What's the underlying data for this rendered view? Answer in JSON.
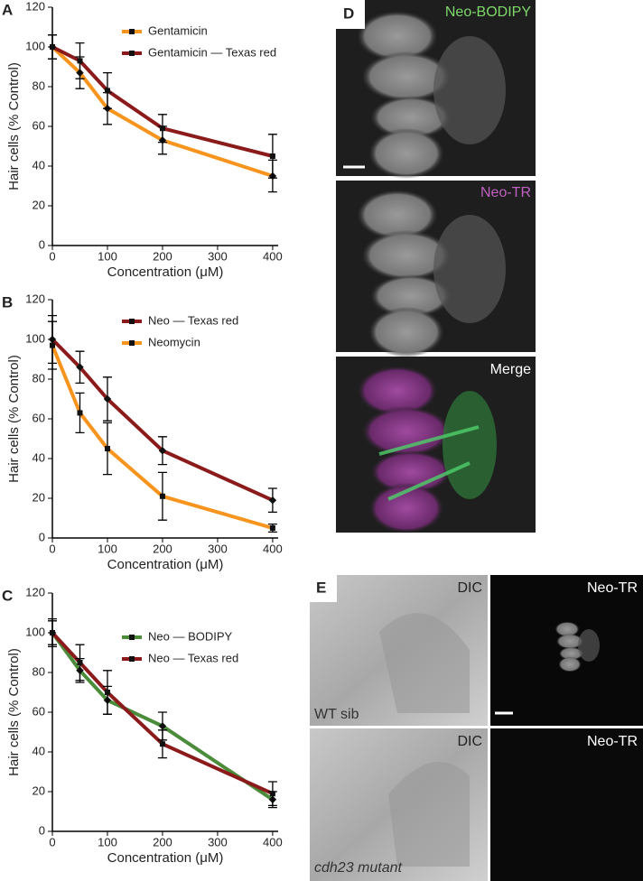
{
  "chart_data": [
    {
      "type": "line",
      "panel_label": "A",
      "xlabel": "Concentration (μM)",
      "ylabel": "Hair cells (% Control)",
      "x": [
        0,
        50,
        100,
        200,
        400
      ],
      "xlim": [
        0,
        410
      ],
      "xticks": [
        0,
        100,
        200,
        300,
        400
      ],
      "ylim": [
        0,
        120
      ],
      "yticks": [
        0,
        20,
        40,
        60,
        80,
        100,
        120
      ],
      "series": [
        {
          "name": "Gentamicin",
          "color": "#f7941d",
          "values": [
            100,
            87,
            69,
            53,
            35
          ],
          "errors": [
            6,
            8,
            8,
            7,
            8
          ]
        },
        {
          "name": "Gentamicin — Texas red",
          "color": "#8b1a1a",
          "values": [
            100,
            93,
            78,
            59,
            45
          ],
          "errors": [
            6,
            9,
            9,
            7,
            11
          ]
        }
      ]
    },
    {
      "type": "line",
      "panel_label": "B",
      "xlabel": "Concentration (μM)",
      "ylabel": "Hair cells (% Control)",
      "x": [
        0,
        50,
        100,
        200,
        400
      ],
      "xlim": [
        0,
        410
      ],
      "xticks": [
        0,
        100,
        200,
        300,
        400
      ],
      "ylim": [
        0,
        120
      ],
      "yticks": [
        0,
        20,
        40,
        60,
        80,
        100,
        120
      ],
      "series": [
        {
          "name": "Neo — Texas red",
          "color": "#8b1a1a",
          "values": [
            100,
            86,
            70,
            44,
            19
          ],
          "errors": [
            12,
            8,
            11,
            7,
            6
          ]
        },
        {
          "name": "Neomycin",
          "color": "#f7941d",
          "values": [
            97,
            63,
            45,
            21,
            5
          ],
          "errors": [
            12,
            10,
            13,
            12,
            2
          ]
        }
      ]
    },
    {
      "type": "line",
      "panel_label": "C",
      "xlabel": "Concentration (μM)",
      "ylabel": "Hair cells (% Control)",
      "x": [
        0,
        50,
        100,
        200,
        400
      ],
      "xlim": [
        0,
        410
      ],
      "xticks": [
        0,
        100,
        200,
        300,
        400
      ],
      "ylim": [
        0,
        120
      ],
      "yticks": [
        0,
        20,
        40,
        60,
        80,
        100,
        120
      ],
      "series": [
        {
          "name": "Neo — BODIPY",
          "color": "#4a8c3a",
          "values": [
            100,
            81,
            66,
            53,
            16
          ],
          "errors": [
            6,
            6,
            7,
            7,
            4
          ]
        },
        {
          "name": "Neo — Texas red",
          "color": "#8b1a1a",
          "values": [
            100,
            85,
            70,
            44,
            19
          ],
          "errors": [
            7,
            9,
            11,
            7,
            6
          ]
        }
      ]
    }
  ],
  "image_panels": [
    {
      "label": "D",
      "titles": [
        "Neo-BODIPY",
        "Neo-TR",
        "Merge"
      ]
    },
    {
      "label": "E",
      "titles": [
        "DIC",
        "Neo-TR",
        "DIC",
        "Neo-TR"
      ],
      "captions": [
        "WT sib",
        "cdh23 mutant"
      ]
    }
  ]
}
